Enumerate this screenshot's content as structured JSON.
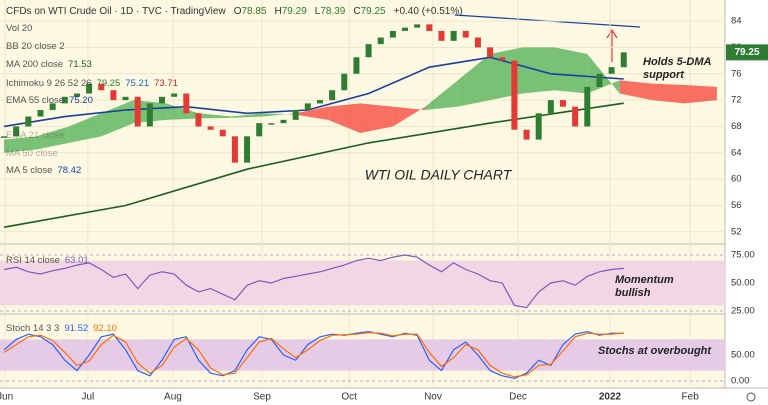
{
  "header": {
    "title": "CFDs on WTI Crude Oil · 1D · TVC · TradingView",
    "ohlc": [
      "O",
      "78.85",
      "H",
      "79.29",
      "L",
      "78.39",
      "C",
      "79.25",
      "+0.40 (+0.51%)"
    ],
    "legend": [
      {
        "label": "Vol 20",
        "values": []
      },
      {
        "label": "BB 20 close 2",
        "values": []
      },
      {
        "label": "MA 200 close",
        "values": [
          "71.53"
        ],
        "colors": [
          "#1b5e20"
        ]
      },
      {
        "label": "Ichimoku 9 26 52 26",
        "values": [
          "79.25",
          "75.21",
          "73.71"
        ],
        "colors": [
          "#2e7d32",
          "#1565c0",
          "#c62828"
        ]
      },
      {
        "label": "EMA 55 close",
        "values": [
          "75.20"
        ],
        "colors": [
          "#1a3fa0"
        ]
      },
      {
        "label": "EMA 21 close",
        "values": []
      },
      {
        "label": "MA 50 close",
        "values": []
      },
      {
        "label": "MA 5 close",
        "values": [
          "78.42"
        ],
        "colors": [
          "#1a3fa0"
        ]
      },
      {
        "label": "RSI 14 close",
        "values": [
          "63.01"
        ],
        "colors": [
          "#7e57c2"
        ]
      },
      {
        "label": "Stoch 14 3 3",
        "values": [
          "91.52",
          "92.10"
        ],
        "colors": [
          "#2962ff",
          "#ff6d00"
        ]
      }
    ]
  },
  "chart_data": [
    {
      "type": "candlestick",
      "title": "WTI OIL DAILY CHART",
      "annotations": [
        "Holds 5-DMA",
        "support"
      ],
      "xlim": [
        -1,
        178
      ],
      "xticks": [
        {
          "value": 0.25,
          "label": "Jun"
        },
        {
          "value": 20.7,
          "label": "Jul"
        },
        {
          "value": 41.7,
          "label": "Aug"
        },
        {
          "value": 63.7,
          "label": "Sep"
        },
        {
          "value": 85.2,
          "label": "Oct"
        },
        {
          "value": 105.9,
          "label": "Nov"
        },
        {
          "value": 126.9,
          "label": "Dec"
        },
        {
          "value": 149.6,
          "label": "2022"
        },
        {
          "value": 169.4,
          "label": "Feb"
        }
      ],
      "ylim": [
        50.3,
        87.2
      ],
      "yticks": [
        84,
        80,
        76,
        72,
        68,
        64,
        60,
        56,
        52
      ],
      "up_color": "#2e7d32",
      "down_color": "#e53935",
      "x": [
        0,
        3,
        6,
        9,
        12,
        15,
        18,
        21,
        24,
        27,
        30,
        33,
        36,
        39,
        42,
        45,
        48,
        51,
        54,
        57,
        60,
        63,
        66,
        69,
        72,
        75,
        78,
        81,
        84,
        87,
        90,
        93,
        96,
        99,
        102,
        105,
        108,
        111,
        114,
        117,
        120,
        123,
        126,
        129,
        132,
        135,
        138,
        141,
        144,
        147,
        150,
        153
      ],
      "values": [
        66.5,
        68,
        69.5,
        70.5,
        71.5,
        72.5,
        73,
        74.5,
        73.5,
        72,
        72.5,
        68,
        71.5,
        72.5,
        73,
        70,
        68,
        67.5,
        66.5,
        62.5,
        66.5,
        68.5,
        68.5,
        69,
        70.5,
        71.5,
        72,
        73.5,
        76,
        78.5,
        80.5,
        81.5,
        82.5,
        83,
        83.5,
        82.5,
        81,
        82.5,
        81.5,
        80,
        78.5,
        78,
        67.5,
        66,
        70,
        72,
        71,
        68,
        74,
        76,
        77,
        79.25
      ],
      "last_value_label": "79.25",
      "lines": [
        {
          "color": "#1b5e20",
          "x": [
            0,
            30,
            60,
            90,
            120,
            153
          ],
          "values": [
            52.7,
            56,
            61.5,
            65.5,
            68.5,
            71.53
          ]
        },
        {
          "color": "#1a3fa0",
          "x": [
            0,
            15,
            30,
            45,
            60,
            75,
            90,
            105,
            120,
            135,
            153
          ],
          "values": [
            68,
            69.5,
            70.5,
            71,
            70,
            70.5,
            73,
            77,
            78.5,
            76,
            75.2
          ]
        }
      ],
      "cloud": {
        "up_color": "#4caf50",
        "down_color": "#f44336",
        "x": [
          0,
          8,
          16,
          24,
          32,
          40,
          48,
          56,
          64,
          72,
          80,
          88,
          96,
          104,
          112,
          120,
          128,
          136,
          144,
          152,
          160,
          168,
          176
        ],
        "a": [
          66,
          66.5,
          68,
          70,
          72,
          71.5,
          70,
          69.5,
          70,
          69.8,
          69,
          67,
          68,
          71,
          75,
          79,
          80,
          80,
          79,
          73,
          72,
          71.5,
          72
        ],
        "b": [
          64,
          64.5,
          65.5,
          66.5,
          68.5,
          69,
          69.2,
          69.3,
          69.5,
          70,
          71,
          71.5,
          71,
          70.5,
          71,
          72,
          73,
          73.5,
          73,
          75,
          74.5,
          74.3,
          74
        ]
      }
    },
    {
      "type": "line",
      "annotations": [
        "Momentum",
        "bullish"
      ],
      "xlim": [
        -1,
        178
      ],
      "ylim": [
        23.2,
        83.9
      ],
      "yticks": [
        {
          "value": 75,
          "label": "75.00"
        },
        {
          "value": 50,
          "label": "50.00"
        },
        {
          "value": 25,
          "label": "25.00"
        }
      ],
      "band": [
        30,
        70
      ],
      "band_color": "#f3d6e4",
      "x": [
        0,
        3,
        6,
        9,
        12,
        15,
        18,
        21,
        24,
        27,
        30,
        33,
        36,
        39,
        42,
        45,
        48,
        51,
        54,
        57,
        60,
        63,
        66,
        69,
        72,
        75,
        78,
        81,
        84,
        87,
        90,
        93,
        96,
        99,
        102,
        105,
        108,
        111,
        114,
        117,
        120,
        123,
        126,
        129,
        132,
        135,
        138,
        141,
        144,
        147,
        150,
        153
      ],
      "series": [
        {
          "color": "#7e57c2",
          "values": [
            62,
            64,
            60,
            58,
            61,
            63,
            66,
            68,
            62,
            55,
            58,
            45,
            57,
            60,
            58,
            48,
            42,
            45,
            40,
            35,
            48,
            52,
            50,
            54,
            56,
            58,
            60,
            63,
            66,
            70,
            72,
            70,
            73,
            75,
            73,
            66,
            60,
            68,
            62,
            58,
            52,
            50,
            30,
            28,
            42,
            50,
            52,
            48,
            56,
            60,
            62,
            63.01
          ]
        }
      ]
    },
    {
      "type": "line",
      "annotations": [
        "Stochs at overbought"
      ],
      "xlim": [
        -1,
        178
      ],
      "ylim": [
        -13.5,
        127
      ],
      "yticks": [
        {
          "value": 50,
          "label": "50.00"
        },
        {
          "value": 0,
          "label": "0.00"
        }
      ],
      "band": [
        20,
        80
      ],
      "band_color": "#e6cbe6",
      "x": [
        0,
        3,
        6,
        9,
        12,
        15,
        18,
        21,
        24,
        27,
        30,
        33,
        36,
        39,
        42,
        45,
        48,
        51,
        54,
        57,
        60,
        63,
        66,
        69,
        72,
        75,
        78,
        81,
        84,
        87,
        90,
        93,
        96,
        99,
        102,
        105,
        108,
        111,
        114,
        117,
        120,
        123,
        126,
        129,
        132,
        135,
        138,
        141,
        144,
        147,
        150,
        153
      ],
      "series": [
        {
          "color": "#2962ff",
          "values": [
            60,
            80,
            90,
            85,
            70,
            40,
            20,
            50,
            85,
            90,
            60,
            20,
            10,
            40,
            80,
            85,
            40,
            15,
            10,
            20,
            60,
            85,
            80,
            50,
            40,
            70,
            85,
            90,
            88,
            92,
            95,
            90,
            85,
            92,
            88,
            40,
            20,
            60,
            75,
            50,
            20,
            10,
            5,
            15,
            40,
            30,
            70,
            90,
            95,
            88,
            92,
            91.52
          ]
        },
        {
          "color": "#ff6d00",
          "values": [
            55,
            70,
            85,
            88,
            78,
            55,
            30,
            38,
            70,
            88,
            75,
            35,
            15,
            30,
            65,
            82,
            60,
            25,
            12,
            15,
            45,
            75,
            82,
            62,
            45,
            60,
            78,
            88,
            89,
            90,
            93,
            92,
            87,
            90,
            90,
            55,
            28,
            45,
            70,
            60,
            30,
            15,
            8,
            12,
            30,
            32,
            58,
            85,
            92,
            90,
            90,
            92.1
          ]
        }
      ]
    }
  ]
}
